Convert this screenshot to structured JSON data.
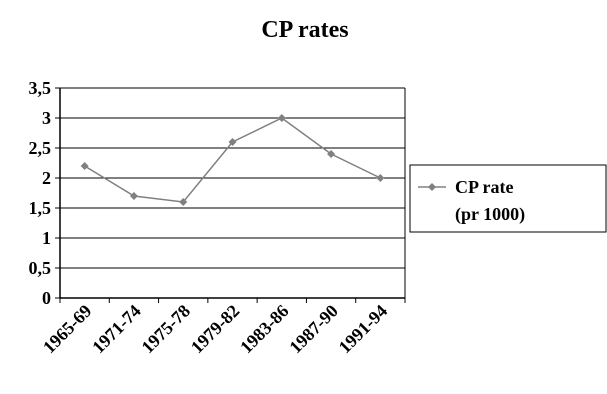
{
  "chart_data": {
    "type": "line",
    "title": "CP rates",
    "xlabel": "",
    "ylabel": "",
    "categories": [
      "1965-69",
      "1971-74",
      "1975-78",
      "1979-82",
      "1983-86",
      "1987-90",
      "1991-94"
    ],
    "series": [
      {
        "name": "CP rate (pr 1000)",
        "legend_lines": [
          "CP rate",
          "(pr 1000)"
        ],
        "values": [
          2.2,
          1.7,
          1.6,
          2.6,
          3.0,
          2.4,
          2.0
        ],
        "color": "#808080"
      }
    ],
    "y_ticks": [
      "0",
      "0,5",
      "1",
      "1,5",
      "2",
      "2,5",
      "3",
      "3,5"
    ],
    "ylim": [
      0,
      3.5
    ],
    "grid": true,
    "legend_position": "right"
  }
}
